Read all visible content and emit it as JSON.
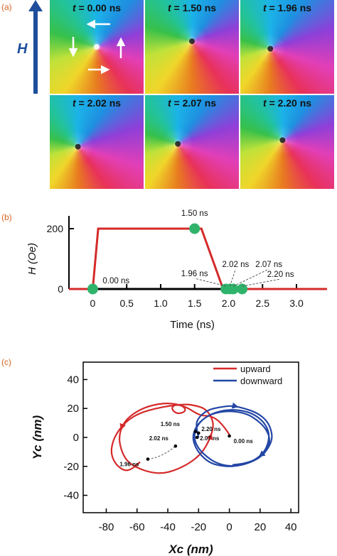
{
  "panel_labels": [
    "(a)",
    "(b)",
    "(c)"
  ],
  "panel_a": {
    "field_label": "H",
    "times": [
      "0.00 ns",
      "1.50 ns",
      "1.96 ns",
      "2.02 ns",
      "2.07 ns",
      "2.20 ns"
    ],
    "colors": {
      "arrow": "#1e4e9c"
    }
  },
  "chart_data": [
    {
      "type": "line",
      "panel": "b",
      "xlabel": "Time (ns)",
      "ylabel": "H (Oe)",
      "xlim": [
        -0.35,
        3.45
      ],
      "ylim": [
        0,
        200
      ],
      "xticks": [
        "0",
        "0.5",
        "1.0",
        "1.5",
        "2.0",
        "2.5",
        "3.0"
      ],
      "xtick_values": [
        0,
        0.5,
        1.0,
        1.5,
        2.0,
        2.5,
        3.0
      ],
      "yticks": [
        "0",
        "200"
      ],
      "ytick_values": [
        0,
        200
      ],
      "series": [
        {
          "color": "#d42a2a",
          "x": [
            -0.35,
            0.0,
            0.08,
            1.6,
            1.92,
            3.45
          ],
          "y": [
            0,
            0,
            200,
            200,
            0,
            0
          ]
        }
      ],
      "markers": [
        {
          "x": 0.0,
          "y": 0,
          "label": "0.00 ns"
        },
        {
          "x": 1.5,
          "y": 200,
          "label": "1.50 ns"
        },
        {
          "x": 1.96,
          "y": 0,
          "label": "1.96 ns"
        },
        {
          "x": 2.02,
          "y": 0,
          "label": "2.02 ns"
        },
        {
          "x": 2.07,
          "y": 0,
          "label": "2.07 ns"
        },
        {
          "x": 2.2,
          "y": 0,
          "label": "2.20 ns"
        }
      ],
      "marker_color": "#2fb36b"
    },
    {
      "type": "line",
      "panel": "c",
      "xlabel": "Xc (nm)",
      "ylabel": "Yc (nm)",
      "xlim": [
        -95,
        45
      ],
      "ylim": [
        -52,
        52
      ],
      "xticks": [
        "-80",
        "-60",
        "-40",
        "-20",
        "0",
        "20",
        "40"
      ],
      "xtick_values": [
        -80,
        -60,
        -40,
        -20,
        0,
        20,
        40
      ],
      "yticks": [
        "40",
        "20",
        "0",
        "-20",
        "-40"
      ],
      "ytick_values": [
        40,
        20,
        0,
        -20,
        -40
      ],
      "legend_position": "top-right",
      "series": [
        {
          "name": "upward",
          "color": "#d42a2a",
          "x": [
            0,
            -5,
            -12,
            -18,
            -22,
            -28,
            -35,
            -38,
            -34,
            -28,
            -30,
            -40,
            -52,
            -62,
            -69,
            -72,
            -70,
            -66,
            -60,
            -52,
            -44,
            -36,
            -26,
            -18,
            -13,
            -10,
            -12,
            -16,
            -22,
            -28,
            -38,
            -48,
            -58,
            -66,
            -72,
            -76,
            -77,
            -73,
            -66,
            -58
          ],
          "y": [
            2,
            10,
            15,
            15,
            17,
            21,
            23,
            20,
            16,
            18,
            22,
            24,
            22,
            17,
            10,
            0,
            -10,
            -17,
            -21,
            -24,
            -25,
            -23,
            -18,
            -11,
            -2,
            8,
            15,
            20,
            22,
            23,
            22,
            20,
            17,
            12,
            5,
            -3,
            -12,
            -20,
            -24,
            -17
          ]
        },
        {
          "name": "downward",
          "color": "#2346a5",
          "x": [
            -20,
            -22,
            -20,
            -14,
            -6,
            2,
            10,
            18,
            24,
            27,
            28,
            25,
            20,
            12,
            4,
            -4,
            -12,
            -18,
            -22,
            -24,
            -22,
            -17,
            -10,
            -2,
            6,
            14,
            20,
            24,
            26,
            25,
            22,
            16,
            8,
            0,
            -8,
            -14,
            -20,
            -23,
            -22,
            -18,
            -12,
            -4,
            4,
            12,
            18,
            23,
            26,
            26,
            23,
            18,
            10,
            2
          ],
          "y": [
            0,
            8,
            14,
            19,
            21,
            22,
            20,
            17,
            12,
            6,
            -1,
            -8,
            -14,
            -18,
            -20,
            -20,
            -18,
            -13,
            -7,
            0,
            7,
            13,
            17,
            19,
            19,
            17,
            13,
            8,
            2,
            -5,
            -11,
            -16,
            -19,
            -20,
            -18,
            -14,
            -8,
            -1,
            6,
            12,
            16,
            18,
            18,
            16,
            12,
            7,
            1,
            -5,
            -11,
            -15,
            -18,
            -19
          ]
        }
      ],
      "points": [
        {
          "x": -22,
          "y": 4,
          "label": "1.50 ns"
        },
        {
          "x": -53,
          "y": -15,
          "label": "1.96 ns"
        },
        {
          "x": -35,
          "y": -6,
          "label": "2.02 ns"
        },
        {
          "x": -21,
          "y": 0,
          "label": "2.07 ns"
        },
        {
          "x": -20,
          "y": 3,
          "label": "2.20 ns"
        },
        {
          "x": 0,
          "y": 1,
          "label": "0.00 ns"
        }
      ]
    }
  ]
}
